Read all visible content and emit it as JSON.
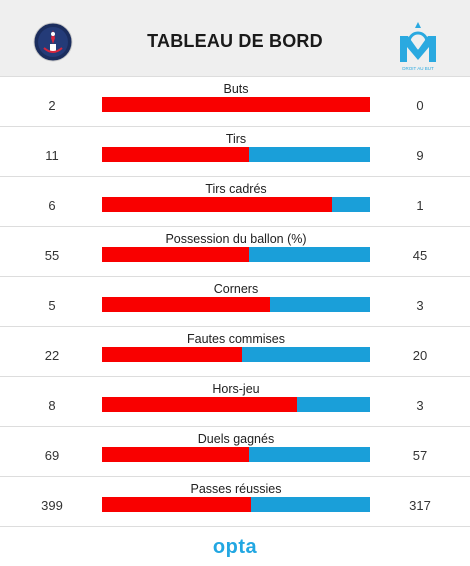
{
  "header": {
    "title": "TABLEAU DE BORD",
    "home_logo_icon": "psg-crest-icon",
    "away_logo_icon": "om-crest-icon",
    "away_logo_text": "DROIT AU BUT"
  },
  "colors": {
    "home": "#f90000",
    "away": "#1a9fd9"
  },
  "stats": [
    {
      "label": "Buts",
      "home": "2",
      "away": "0"
    },
    {
      "label": "Tirs",
      "home": "11",
      "away": "9"
    },
    {
      "label": "Tirs cadrés",
      "home": "6",
      "away": "1"
    },
    {
      "label": "Possession du ballon (%)",
      "home": "55",
      "away": "45"
    },
    {
      "label": "Corners",
      "home": "5",
      "away": "3"
    },
    {
      "label": "Fautes commises",
      "home": "22",
      "away": "20"
    },
    {
      "label": "Hors-jeu",
      "home": "8",
      "away": "3"
    },
    {
      "label": "Duels gagnés",
      "home": "69",
      "away": "57"
    },
    {
      "label": "Passes réussies",
      "home": "399",
      "away": "317"
    }
  ],
  "footer": {
    "brand": "opta"
  }
}
